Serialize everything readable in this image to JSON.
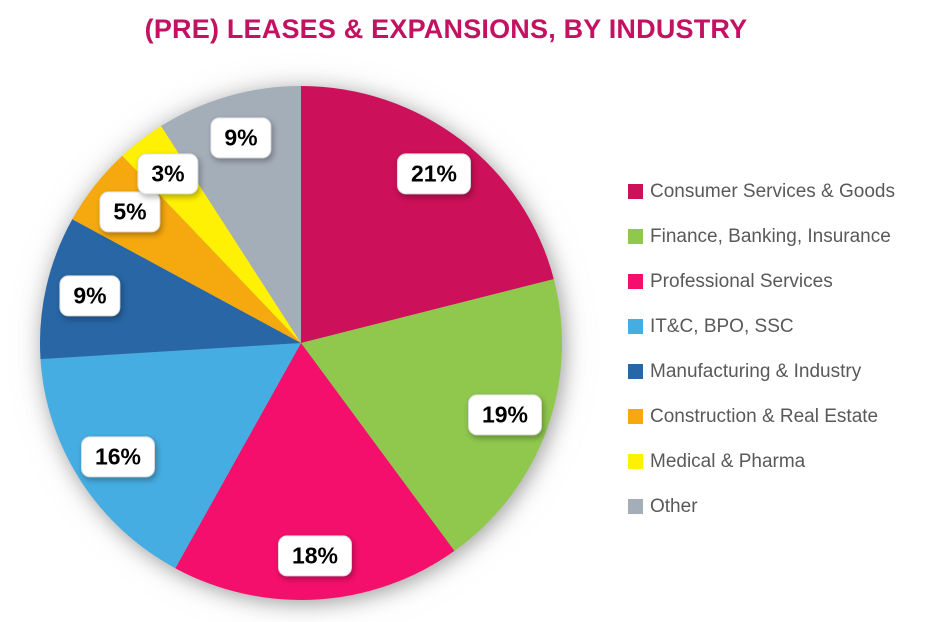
{
  "colors": {
    "title": "#C31262",
    "legend_text": "#595959",
    "label_text": "#000000",
    "label_box_bg": "#FFFFFF",
    "background": "#FFFFFF"
  },
  "chart_data": {
    "type": "pie",
    "title": "(PRE) LEASES & EXPANSIONS, BY INDUSTRY",
    "unit": "%",
    "direction": "clockwise",
    "start_angle_deg": 0,
    "legend_position": "right",
    "data_labels": "percent in white rounded callouts inside slices",
    "slices": [
      {
        "label": "Consumer Services & Goods",
        "value": 21,
        "display": "21%",
        "color": "#CC1059"
      },
      {
        "label": "Finance, Banking, Insurance",
        "value": 19,
        "display": "19%",
        "color": "#8FC84D"
      },
      {
        "label": "Professional Services",
        "value": 18,
        "display": "18%",
        "color": "#F40F6C"
      },
      {
        "label": "IT&C, BPO, SSC",
        "value": 16,
        "display": "16%",
        "color": "#46ADE2"
      },
      {
        "label": "Manufacturing & Industry",
        "value": 9,
        "display": "9%",
        "color": "#2866A6"
      },
      {
        "label": "Construction & Real Estate",
        "value": 5,
        "display": "5%",
        "color": "#F6A90E"
      },
      {
        "label": "Medical & Pharma",
        "value": 3,
        "display": "3%",
        "color": "#FFF104"
      },
      {
        "label": "Other",
        "value": 9,
        "display": "9%",
        "color": "#A4AEB9"
      }
    ]
  }
}
